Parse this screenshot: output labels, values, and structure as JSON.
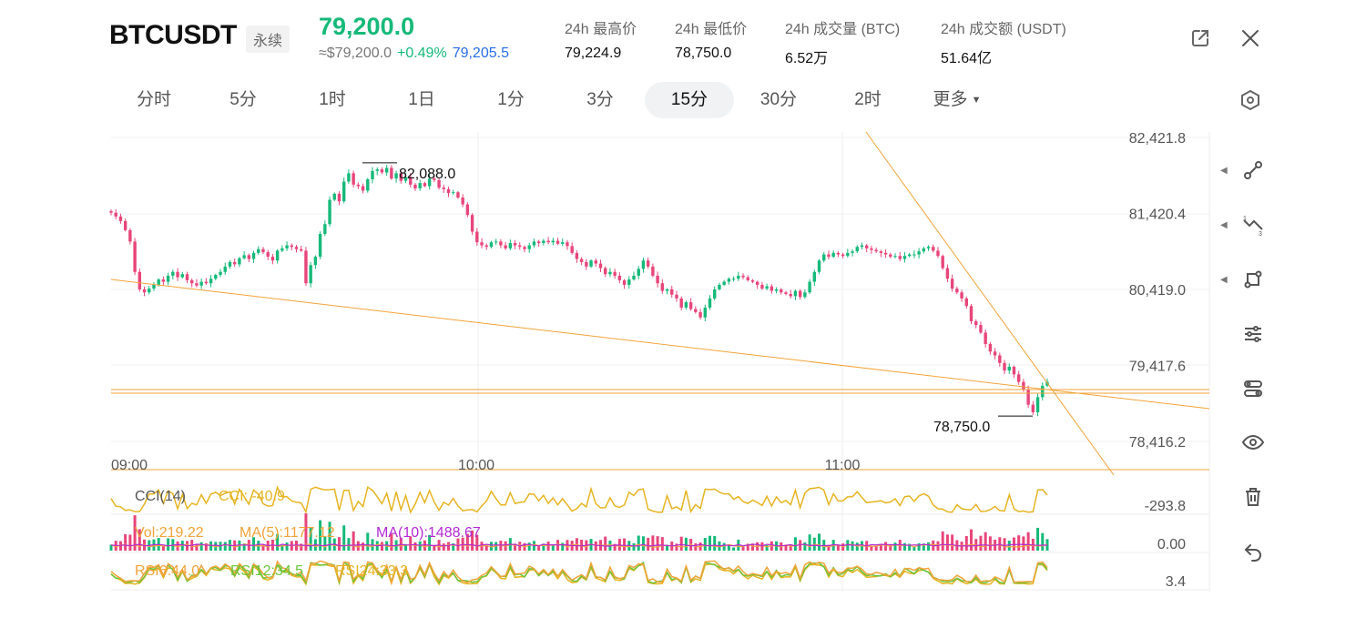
{
  "header": {
    "symbol": "BTCUSDT",
    "contract_type": "永续",
    "last_price": "79,200.0",
    "usd_price": "≈$79,200.0",
    "change_pct": "+0.49%",
    "mark_price": "79,205.5",
    "stats": [
      {
        "label": "24h 最高价",
        "value": "79,224.9"
      },
      {
        "label": "24h 最低价",
        "value": "78,750.0"
      },
      {
        "label": "24h 成交量 (BTC)",
        "value": "6.52万"
      },
      {
        "label": "24h 成交额 (USDT)",
        "value": "51.64亿"
      }
    ],
    "icons": {
      "share": "share-out-icon",
      "close": "close-icon"
    }
  },
  "intervals": {
    "tabs": [
      "分时",
      "5分",
      "1时",
      "1日",
      "1分",
      "3分",
      "15分",
      "30分",
      "2时",
      "更多"
    ],
    "active": "15分"
  },
  "toolbar": {
    "icons": [
      "ray-line-icon",
      "fib-line-icon",
      "rect-shape-icon",
      "sliders-icon",
      "indicator-icon",
      "eye-icon",
      "trash-icon",
      "undo-icon"
    ],
    "settings_icon": "hexagon-gear-icon"
  },
  "chart_data": {
    "type": "candlestick",
    "y_ticks": [
      "82,421.8",
      "81,420.4",
      "80,419.0",
      "79,417.6",
      "78,416.2"
    ],
    "y_tick_values": [
      82421.8,
      81420.4,
      80419.0,
      79417.6,
      78416.2
    ],
    "x_ticks": [
      "09:00",
      "10:00",
      "11:00"
    ],
    "ylim": [
      78250,
      82450
    ],
    "annotations": {
      "high_label": "82,088.0",
      "high_value": 82088.0,
      "low_label": "78,750.0",
      "low_value": 78750.0,
      "last_price_value": 79200.0
    },
    "series_close": [
      81430,
      81380,
      81320,
      81200,
      81050,
      80650,
      80420,
      80380,
      80430,
      80480,
      80550,
      80520,
      80600,
      80650,
      80580,
      80620,
      80540,
      80500,
      80470,
      80520,
      80500,
      80560,
      80610,
      80650,
      80720,
      80780,
      80750,
      80830,
      80870,
      80820,
      80900,
      80950,
      80910,
      80850,
      80800,
      80930,
      80960,
      81000,
      80980,
      80950,
      80930,
      80500,
      80740,
      80850,
      81150,
      81280,
      81600,
      81680,
      81580,
      81840,
      81950,
      81800,
      81780,
      81720,
      81870,
      81980,
      82000,
      81960,
      82020,
      81880,
      81950,
      81850,
      81900,
      81800,
      81750,
      81820,
      81780,
      81880,
      81860,
      81760,
      81740,
      81690,
      81700,
      81630,
      81540,
      81400,
      81180,
      81040,
      81000,
      80980,
      81040,
      81050,
      81000,
      80960,
      81030,
      81000,
      80980,
      80950,
      81000,
      81050,
      81030,
      81060,
      81040,
      81060,
      81020,
      81040,
      80990,
      80900,
      80820,
      80780,
      80720,
      80800,
      80760,
      80700,
      80620,
      80650,
      80600,
      80540,
      80480,
      80550,
      80600,
      80690,
      80800,
      80720,
      80600,
      80500,
      80400,
      80420,
      80350,
      80300,
      80180,
      80250,
      80160,
      80120,
      80050,
      80180,
      80300,
      80420,
      80480,
      80520,
      80560,
      80560,
      80600,
      80580,
      80540,
      80520,
      80480,
      80430,
      80460,
      80400,
      80420,
      80380,
      80360,
      80330,
      80400,
      80320,
      80380,
      80520,
      80650,
      80800,
      80880,
      80850,
      80900,
      80880,
      80860,
      80900,
      80920,
      80980,
      81000,
      80960,
      80940,
      80920,
      80900,
      80880,
      80850,
      80860,
      80820,
      80860,
      80880,
      80880,
      80920,
      80960,
      80980,
      80930,
      80860,
      80700,
      80560,
      80430,
      80380,
      80300,
      80200,
      80000,
      79950,
      79850,
      79700,
      79600,
      79550,
      79450,
      79350,
      79400,
      79300,
      79200,
      79100,
      78900,
      78800,
      79000,
      79150,
      79200
    ]
  },
  "indicators": {
    "cci": {
      "label": "CCI(14)",
      "value_label": "CCI: -40.9",
      "axis_label": "-293.8"
    },
    "volume": {
      "label": "Vol:219.22",
      "ma5": "MA(5):1177.12",
      "ma10": "MA(10):1488.67",
      "axis_label": "0.00"
    },
    "rsi": {
      "rsi6": "RSI6:44.0",
      "rsi12": "RSI12:34.5",
      "rsi24": "RSI24:33.3",
      "axis_label": "3.4"
    }
  },
  "colors": {
    "up": "#16b979",
    "down": "#e8457a",
    "accent": "#f2a33a",
    "blue": "#2a6de8",
    "purple": "#b429d6"
  }
}
